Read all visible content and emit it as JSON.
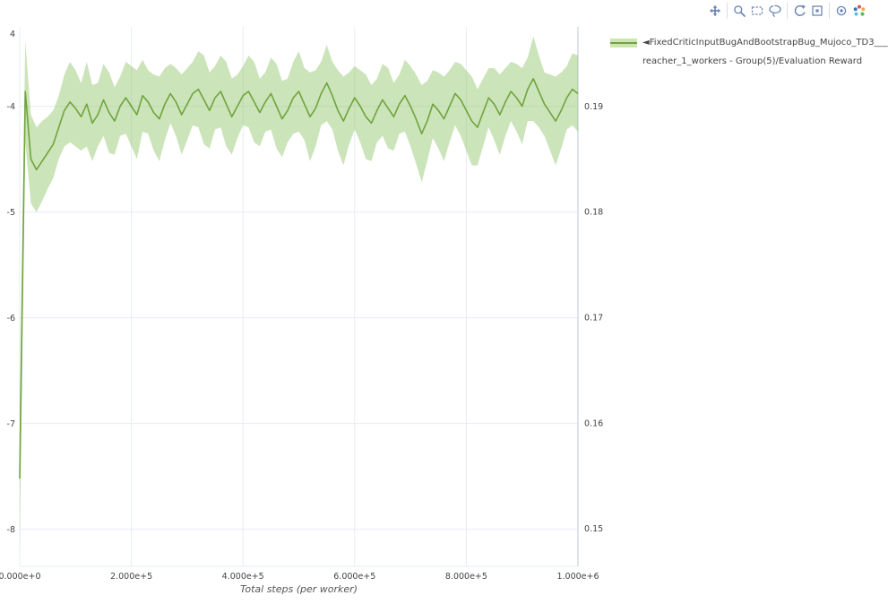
{
  "modebar": {
    "color": "#6d87b5",
    "groups": [
      [
        "pan-icon"
      ],
      [
        "zoom-icon",
        "box-select-icon",
        "lasso-icon"
      ],
      [
        "autoscale-icon",
        "reset-axes-icon"
      ],
      [
        "hover-closest-icon",
        "plotly-logo-icon"
      ]
    ]
  },
  "legend": {
    "line1": "◄FixedCriticInputBugAndBootstrapBug_Mujoco_TD3___",
    "line2": "reacher_1_workers - Group(5)/Evaluation Reward",
    "line_color": "#6fa43c",
    "band_color": "#cde4b3"
  },
  "colors": {
    "grid": "#e7ecf3",
    "axis": "#b9c5d8",
    "tick_text": "#444444",
    "background": "#ffffff"
  },
  "chart_data": {
    "type": "line",
    "title": "",
    "xlabel": "Total steps (per worker)",
    "ylabel": "",
    "grid": true,
    "legend_position": "top-right-outside",
    "xlim": [
      0,
      1000000
    ],
    "ylim_left": [
      -8.35,
      -3.25
    ],
    "ylim_right": [
      0.1464,
      0.1975
    ],
    "x_ticks": {
      "values": [
        0,
        200000,
        400000,
        600000,
        800000,
        1000000
      ],
      "labels": [
        "0.000e+0",
        "2.000e+5",
        "4.000e+5",
        "6.000e+5",
        "8.000e+5",
        "1.000e+6"
      ]
    },
    "y_ticks_left": {
      "values": [
        -4,
        -5,
        -6,
        -7,
        -8
      ],
      "labels": [
        "-4",
        "-5",
        "-6",
        "-7",
        "-8"
      ],
      "cropped_top_label": "4"
    },
    "y_ticks_right": {
      "values": [
        0.19,
        0.18,
        0.17,
        0.16,
        0.15
      ],
      "labels": [
        "0.19",
        "0.18",
        "0.17",
        "0.16",
        "0.15"
      ]
    },
    "x_start": 0,
    "x_step": 10000,
    "series": [
      {
        "name": "FixedCriticInputBugAndBootstrapBug_Mujoco_TD3___reacher_1_workers - Group(5)/Evaluation Reward",
        "axis": "left",
        "color": "#6fa43c",
        "band_color": "rgba(141,196,101,0.45)",
        "mean": [
          -7.52,
          -3.86,
          -4.5,
          -4.6,
          -4.52,
          -4.44,
          -4.36,
          -4.2,
          -4.04,
          -3.96,
          -4.02,
          -4.1,
          -3.98,
          -4.16,
          -4.08,
          -3.94,
          -4.06,
          -4.14,
          -4.0,
          -3.92,
          -4.0,
          -4.08,
          -3.9,
          -3.96,
          -4.06,
          -4.12,
          -3.98,
          -3.88,
          -3.96,
          -4.08,
          -3.98,
          -3.88,
          -3.84,
          -3.94,
          -4.04,
          -3.92,
          -3.86,
          -3.98,
          -4.1,
          -4.0,
          -3.9,
          -3.86,
          -3.96,
          -4.06,
          -3.96,
          -3.88,
          -4.0,
          -4.12,
          -4.04,
          -3.92,
          -3.86,
          -3.98,
          -4.1,
          -4.02,
          -3.88,
          -3.78,
          -3.9,
          -4.04,
          -4.14,
          -4.02,
          -3.92,
          -4.0,
          -4.1,
          -4.16,
          -4.04,
          -3.94,
          -4.02,
          -4.1,
          -3.98,
          -3.9,
          -4.0,
          -4.12,
          -4.26,
          -4.14,
          -3.98,
          -4.04,
          -4.12,
          -4.0,
          -3.88,
          -3.94,
          -4.04,
          -4.14,
          -4.2,
          -4.06,
          -3.92,
          -3.98,
          -4.08,
          -3.96,
          -3.86,
          -3.92,
          -4.0,
          -3.84,
          -3.74,
          -3.86,
          -3.98,
          -4.06,
          -4.14,
          -4.04,
          -3.92,
          -3.84,
          -3.88
        ],
        "spread": [
          0.7,
          0.48,
          0.42,
          0.4,
          0.38,
          0.34,
          0.32,
          0.3,
          0.34,
          0.38,
          0.36,
          0.32,
          0.4,
          0.36,
          0.3,
          0.34,
          0.38,
          0.32,
          0.28,
          0.34,
          0.38,
          0.42,
          0.34,
          0.3,
          0.36,
          0.4,
          0.34,
          0.28,
          0.32,
          0.38,
          0.34,
          0.3,
          0.36,
          0.42,
          0.36,
          0.3,
          0.34,
          0.4,
          0.36,
          0.3,
          0.28,
          0.34,
          0.38,
          0.32,
          0.28,
          0.34,
          0.4,
          0.36,
          0.3,
          0.34,
          0.38,
          0.34,
          0.42,
          0.36,
          0.3,
          0.36,
          0.32,
          0.38,
          0.42,
          0.34,
          0.3,
          0.34,
          0.4,
          0.36,
          0.3,
          0.34,
          0.38,
          0.32,
          0.28,
          0.34,
          0.38,
          0.42,
          0.46,
          0.38,
          0.32,
          0.36,
          0.4,
          0.34,
          0.3,
          0.34,
          0.38,
          0.42,
          0.36,
          0.32,
          0.28,
          0.34,
          0.38,
          0.32,
          0.28,
          0.32,
          0.36,
          0.3,
          0.4,
          0.34,
          0.3,
          0.36,
          0.42,
          0.36,
          0.3,
          0.34,
          0.36
        ]
      }
    ]
  }
}
